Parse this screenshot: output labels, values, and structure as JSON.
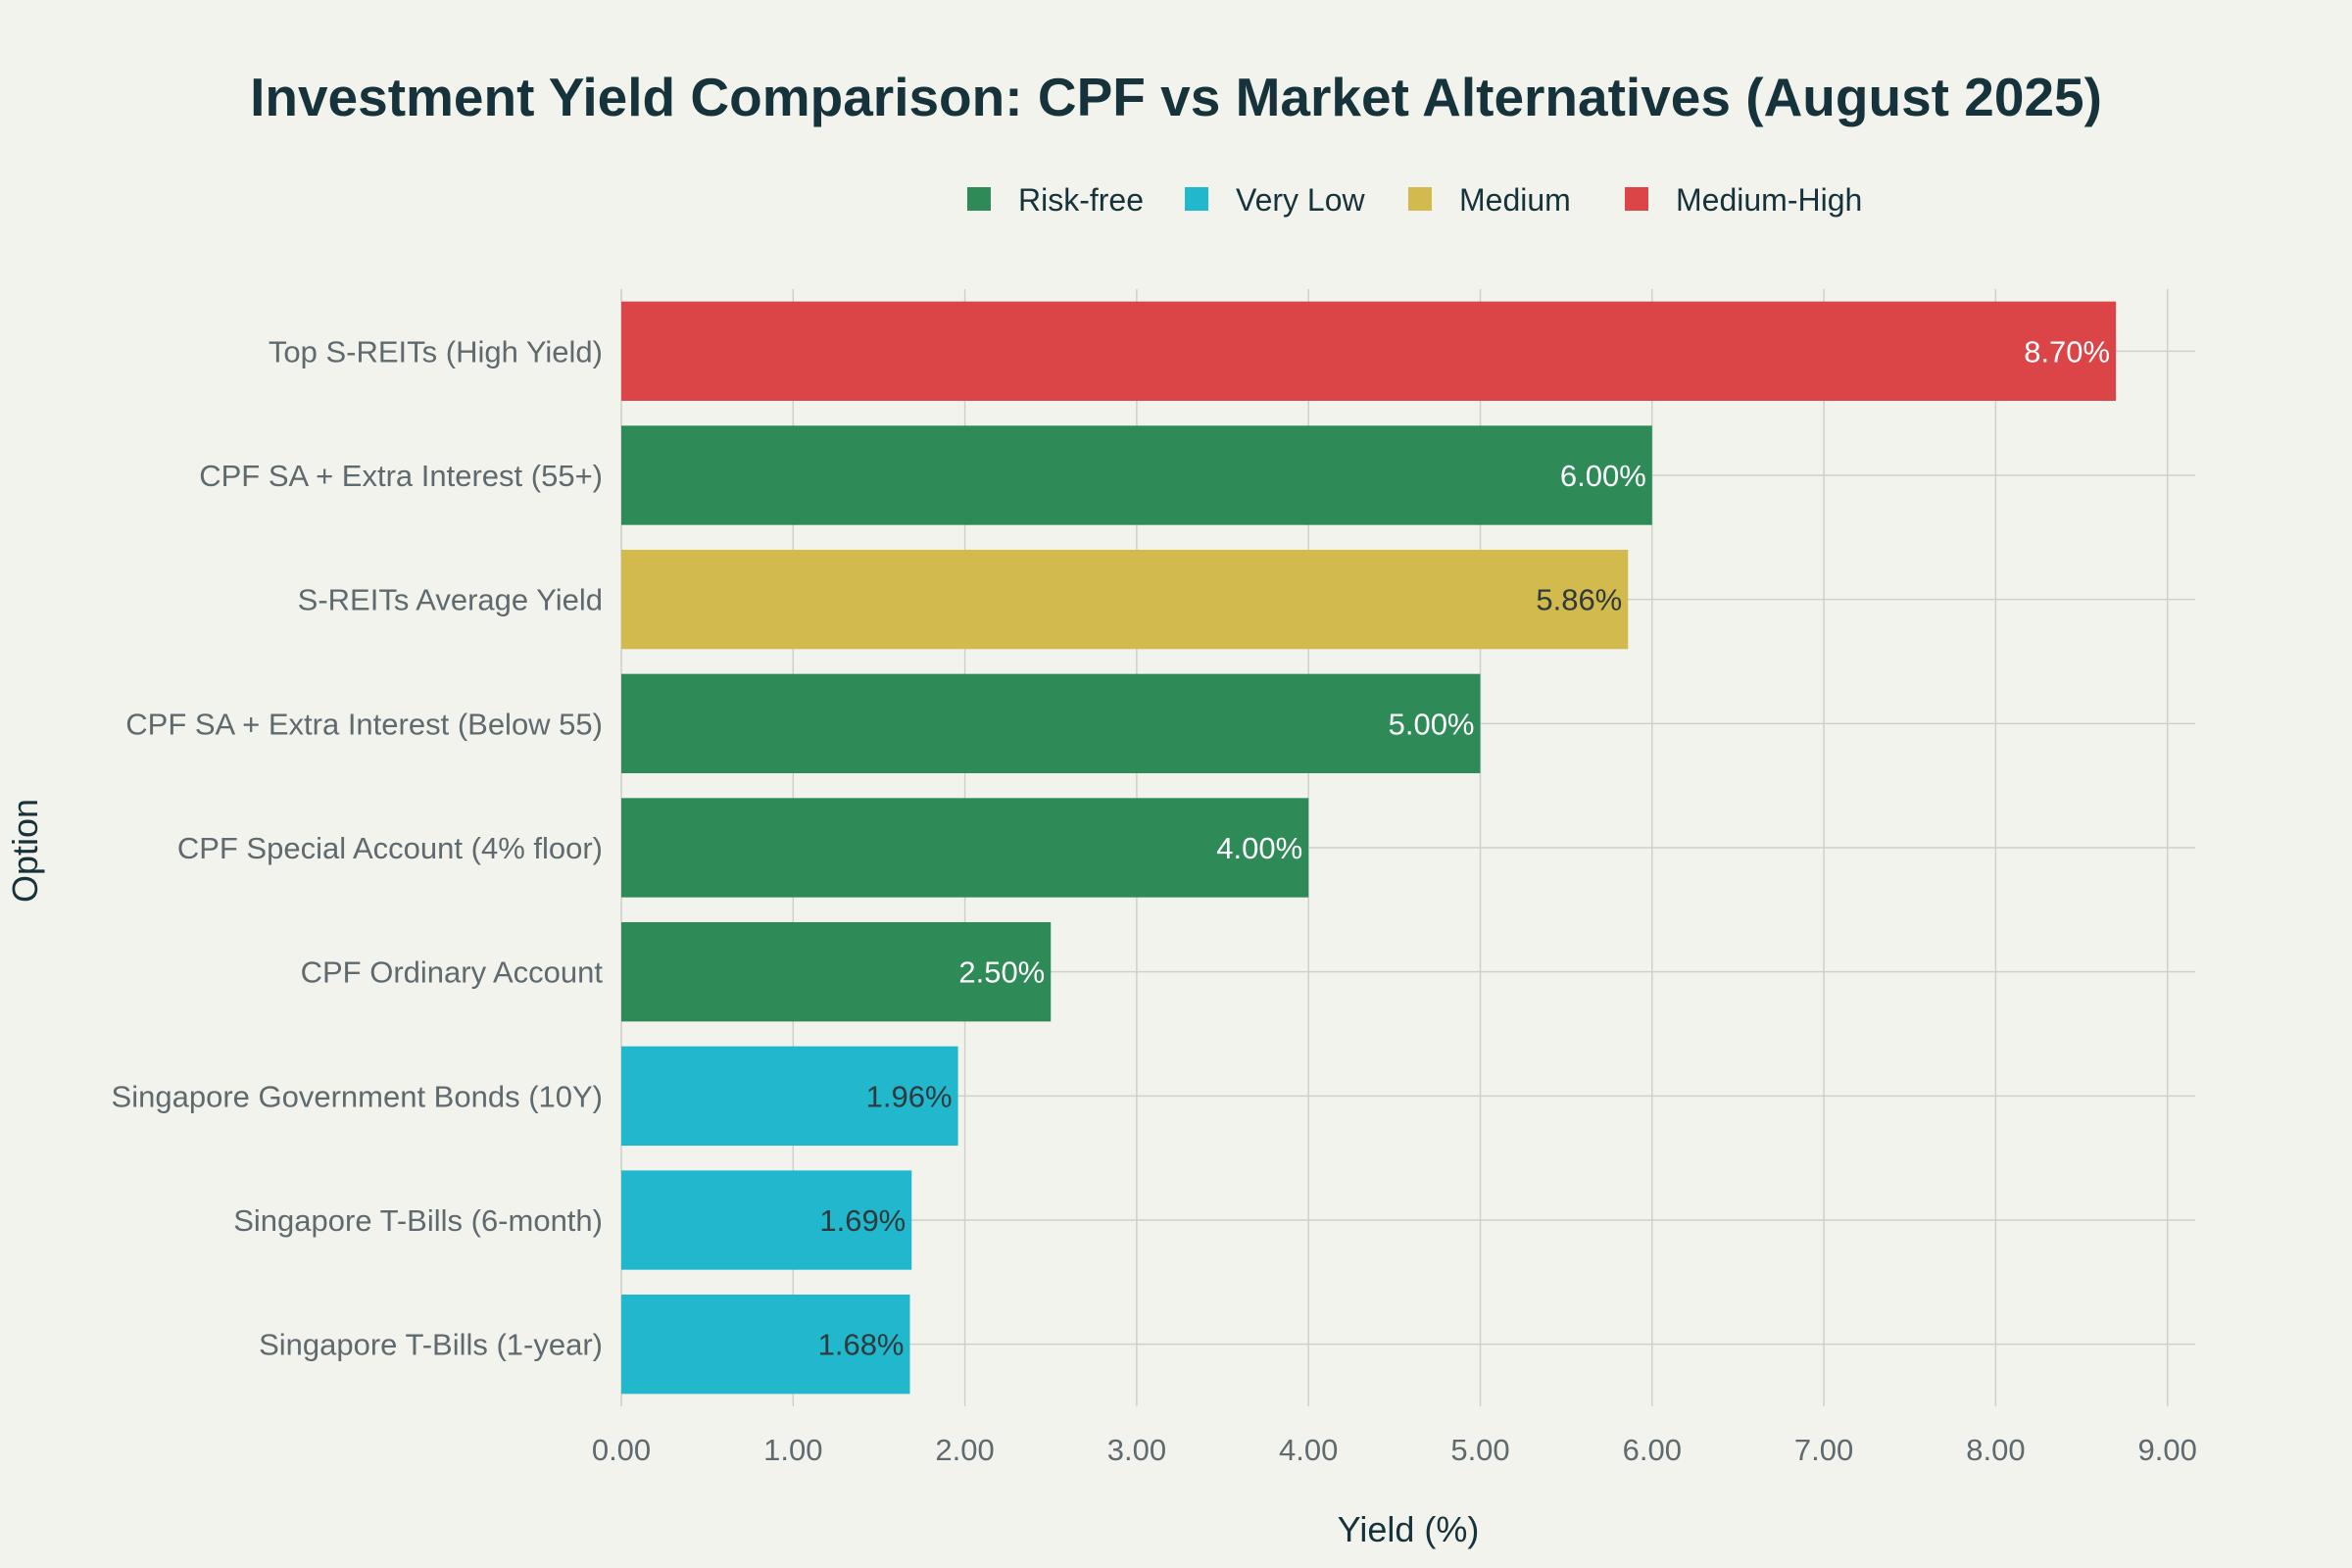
{
  "chart_data": {
    "type": "bar",
    "orientation": "horizontal",
    "title": "Investment Yield Comparison: CPF vs Market Alternatives (August 2025)",
    "xlabel": "Yield (%)",
    "ylabel": "Option",
    "xlim": [
      0,
      9.2
    ],
    "xticks": [
      0,
      1,
      2,
      3,
      4,
      5,
      6,
      7,
      8,
      9
    ],
    "xtick_labels": [
      "0.00",
      "1.00",
      "2.00",
      "3.00",
      "4.00",
      "5.00",
      "6.00",
      "7.00",
      "8.00",
      "9.00"
    ],
    "grid": true,
    "legend_position": "top-center",
    "legend": [
      {
        "name": "Risk-free",
        "color": "#2e8b57"
      },
      {
        "name": "Very Low",
        "color": "#21b7cd"
      },
      {
        "name": "Medium",
        "color": "#d2ba4c"
      },
      {
        "name": "Medium-High",
        "color": "#db4548"
      }
    ],
    "categories": [
      "Top S-REITs (High Yield)",
      "CPF SA + Extra Interest (55+)",
      "S-REITs Average Yield",
      "CPF SA + Extra Interest (Below 55)",
      "CPF Special Account (4% floor)",
      "CPF Ordinary Account",
      "Singapore Government Bonds (10Y)",
      "Singapore T-Bills (6-month)",
      "Singapore T-Bills (1-year)"
    ],
    "values": [
      8.7,
      6.0,
      5.86,
      5.0,
      4.0,
      2.5,
      1.96,
      1.69,
      1.68
    ],
    "value_labels": [
      "8.70%",
      "6.00%",
      "5.86%",
      "5.00%",
      "4.00%",
      "2.50%",
      "1.96%",
      "1.69%",
      "1.68%"
    ],
    "risk": [
      "Medium-High",
      "Risk-free",
      "Medium",
      "Risk-free",
      "Risk-free",
      "Risk-free",
      "Very Low",
      "Very Low",
      "Very Low"
    ]
  }
}
